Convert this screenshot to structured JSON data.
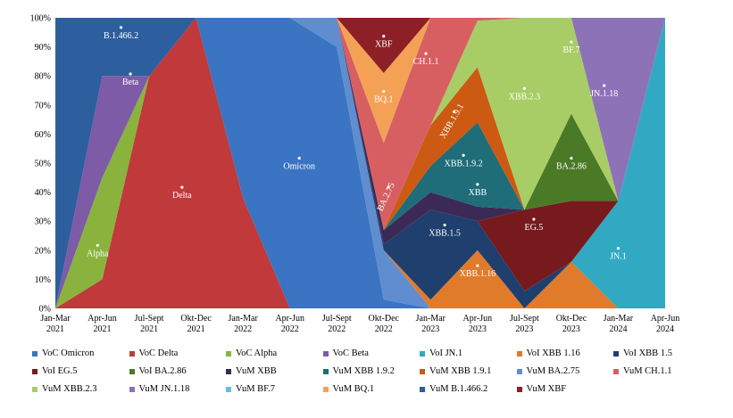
{
  "chart_data": {
    "type": "area",
    "stacking": "percent",
    "title": "",
    "xlabel": "",
    "ylabel": "",
    "ylim": [
      0,
      100
    ],
    "ytick_labels": [
      "0%",
      "10%",
      "20%",
      "30%",
      "40%",
      "50%",
      "60%",
      "70%",
      "80%",
      "90%",
      "100%"
    ],
    "categories": [
      "Jan-Mar\n2021",
      "Apr-Jun\n2021",
      "Jul-Sept\n2021",
      "Okt-Dec\n2021",
      "Jan-Mar\n2022",
      "Apr-Jun\n2022",
      "Jul-Sept\n2022",
      "Okt-Dec\n2022",
      "Jan-Mar\n2023",
      "Apr-Jun\n2023",
      "Jul-Sept\n2023",
      "Okt-Dec\n2023",
      "Jan-Mar\n2024",
      "Apr-Jun\n2024"
    ],
    "xtick_labels": [
      [
        "Jan-Mar",
        "2021"
      ],
      [
        "Apr-Jun",
        "2021"
      ],
      [
        "Jul-Sept",
        "2021"
      ],
      [
        "Okt-Dec",
        "2021"
      ],
      [
        "Jan-Mar",
        "2022"
      ],
      [
        "Apr-Jun",
        "2022"
      ],
      [
        "Jul-Sept",
        "2022"
      ],
      [
        "Okt-Dec",
        "2022"
      ],
      [
        "Jan-Mar",
        "2023"
      ],
      [
        "Apr-Jun",
        "2023"
      ],
      [
        "Jul-Sept",
        "2023"
      ],
      [
        "Okt-Dec",
        "2023"
      ],
      [
        "Jan-Mar",
        "2024"
      ],
      [
        "Apr-Jun",
        "2024"
      ]
    ],
    "series": [
      {
        "name": "VoC Delta",
        "color": "#C0393B",
        "values": [
          0,
          10,
          80,
          100,
          38,
          0,
          0,
          0,
          0,
          0,
          0,
          0,
          0,
          0
        ]
      },
      {
        "name": "VoC Alpha",
        "color": "#8AB33E",
        "values": [
          0,
          35,
          0,
          0,
          0,
          0,
          0,
          0,
          0,
          0,
          0,
          0,
          0,
          0
        ]
      },
      {
        "name": "VoC Beta",
        "color": "#7D5BA6",
        "values": [
          0,
          35,
          0,
          0,
          0,
          0,
          0,
          0,
          0,
          0,
          0,
          0,
          0,
          0
        ]
      },
      {
        "name": "VoC Omicron",
        "color": "#3A74C2",
        "values": [
          0,
          0,
          0,
          0,
          62,
          100,
          90,
          3,
          0,
          0,
          0,
          0,
          0,
          0
        ]
      },
      {
        "name": "VuM BA.2.75",
        "color": "#5F8DCF",
        "values": [
          0,
          0,
          0,
          0,
          0,
          0,
          10,
          17,
          0,
          0,
          0,
          0,
          0,
          0
        ]
      },
      {
        "name": "VoI XBB 1.16",
        "color": "#E07B2C",
        "values": [
          0,
          0,
          0,
          0,
          0,
          0,
          0,
          0,
          3,
          20,
          0,
          16,
          0,
          0
        ]
      },
      {
        "name": "VoI JN.1",
        "color": "#31A9C2",
        "values": [
          0,
          0,
          0,
          0,
          0,
          0,
          0,
          0,
          0,
          0,
          0,
          0,
          37,
          100
        ]
      },
      {
        "name": "VoI XBB 1.5",
        "color": "#1F3F6E",
        "values": [
          0,
          0,
          0,
          0,
          0,
          0,
          0,
          2,
          31,
          10,
          6,
          0,
          0,
          0
        ]
      },
      {
        "name": "VoI EG.5",
        "color": "#771A1E",
        "values": [
          0,
          0,
          0,
          0,
          0,
          0,
          0,
          0,
          0,
          0,
          28,
          21,
          0,
          0
        ]
      },
      {
        "name": "VoI BA.2.86",
        "color": "#4B7A26",
        "values": [
          0,
          0,
          0,
          0,
          0,
          0,
          0,
          0,
          0,
          0,
          0,
          30,
          0,
          0
        ]
      },
      {
        "name": "VuM XBB",
        "color": "#3C2A56",
        "values": [
          0,
          0,
          0,
          0,
          0,
          0,
          0,
          5,
          6,
          5,
          0,
          0,
          0,
          0
        ]
      },
      {
        "name": "VuM XBB 1.9.2",
        "color": "#1E6D78",
        "values": [
          0,
          0,
          0,
          0,
          0,
          0,
          0,
          0,
          9,
          29,
          0,
          0,
          0,
          0
        ]
      },
      {
        "name": "VuM XBB 1.9.1",
        "color": "#CC5A12",
        "values": [
          0,
          0,
          0,
          0,
          0,
          0,
          0,
          0,
          14,
          19,
          0,
          0,
          0,
          0
        ]
      },
      {
        "name": "VuM XBB.2.3",
        "color": "#A8CD66",
        "values": [
          0,
          0,
          0,
          0,
          0,
          0,
          0,
          0,
          0,
          16,
          66,
          33,
          0,
          0
        ]
      },
      {
        "name": "VuM JN.1.18",
        "color": "#8E72B8",
        "values": [
          0,
          0,
          0,
          0,
          0,
          0,
          0,
          0,
          0,
          0,
          0,
          0,
          63,
          0
        ]
      },
      {
        "name": "VuM BF.7",
        "color": "#61C0DA",
        "values": [
          0,
          0,
          0,
          0,
          0,
          0,
          0,
          0,
          0,
          0,
          0,
          0,
          0,
          0
        ]
      },
      {
        "name": "VuM CH.1.1",
        "color": "#D75F62",
        "values": [
          0,
          0,
          0,
          0,
          0,
          0,
          0,
          30,
          37,
          1,
          0,
          0,
          0,
          0
        ]
      },
      {
        "name": "VuM BQ.1",
        "color": "#F4A156",
        "values": [
          0,
          0,
          0,
          0,
          0,
          0,
          0,
          24,
          0,
          0,
          0,
          0,
          0,
          0
        ]
      },
      {
        "name": "VuM B.1.466.2",
        "color": "#2D5F9E",
        "values": [
          100,
          20,
          20,
          0,
          0,
          0,
          0,
          0,
          0,
          0,
          0,
          0,
          0,
          0
        ]
      },
      {
        "name": "VuM XBF",
        "color": "#8C2026",
        "values": [
          0,
          0,
          0,
          0,
          0,
          0,
          0,
          19,
          0,
          0,
          0,
          0,
          0,
          0
        ]
      }
    ],
    "annotations": [
      {
        "text": "B.1.466.2",
        "x": 1.4,
        "y": 93
      },
      {
        "text": "Beta",
        "x": 1.6,
        "y": 77
      },
      {
        "text": "Alpha",
        "x": 0.9,
        "y": 18
      },
      {
        "text": "Delta",
        "x": 2.7,
        "y": 38
      },
      {
        "text": "Omicron",
        "x": 5.2,
        "y": 48
      },
      {
        "text": "XBF",
        "x": 7.0,
        "y": 90
      },
      {
        "text": "BQ.1",
        "x": 7.0,
        "y": 71
      },
      {
        "text": "CH.1.1",
        "x": 7.9,
        "y": 84
      },
      {
        "text": "BA.2.75",
        "x": 7.1,
        "y": 38
      },
      {
        "text": "XBB.1.9.1",
        "x": 8.5,
        "y": 64
      },
      {
        "text": "XBB.1.9.2",
        "x": 8.7,
        "y": 49
      },
      {
        "text": "XBB",
        "x": 9.0,
        "y": 39
      },
      {
        "text": "XBB.1.5",
        "x": 8.3,
        "y": 25
      },
      {
        "text": "XBB.1.16",
        "x": 9.0,
        "y": 11
      },
      {
        "text": "XBB.2.3",
        "x": 10.0,
        "y": 72
      },
      {
        "text": "BF.7",
        "x": 11.0,
        "y": 88
      },
      {
        "text": "JN.1.18",
        "x": 11.7,
        "y": 73
      },
      {
        "text": "BA.2.86",
        "x": 11.0,
        "y": 48
      },
      {
        "text": "EG.5",
        "x": 10.2,
        "y": 27
      },
      {
        "text": "JN.1",
        "x": 12.0,
        "y": 17
      }
    ],
    "legend_position": "bottom",
    "legend": [
      {
        "name": "VoC Omicron",
        "color": "#3A74C2"
      },
      {
        "name": "VoC Delta",
        "color": "#C0393B"
      },
      {
        "name": "VoC Alpha",
        "color": "#8AB33E"
      },
      {
        "name": "VoC Beta",
        "color": "#7D5BA6"
      },
      {
        "name": "VoI JN.1",
        "color": "#31A9C2"
      },
      {
        "name": "VoI XBB 1.16",
        "color": "#E07B2C"
      },
      {
        "name": "VoI XBB 1.5",
        "color": "#1F3F6E"
      },
      {
        "name": "VoI EG.5",
        "color": "#771A1E"
      },
      {
        "name": "VoI BA.2.86",
        "color": "#4B7A26"
      },
      {
        "name": "VuM XBB",
        "color": "#3C2A56"
      },
      {
        "name": "VuM XBB 1.9.2",
        "color": "#1E6D78"
      },
      {
        "name": "VuM XBB 1.9.1",
        "color": "#CC5A12"
      },
      {
        "name": "VuM BA.2.75",
        "color": "#5F8DCF"
      },
      {
        "name": "VuM CH.1.1",
        "color": "#D75F62"
      },
      {
        "name": "VuM XBB.2.3",
        "color": "#A8CD66"
      },
      {
        "name": "VuM JN.1.18",
        "color": "#8E72B8"
      },
      {
        "name": "VuM BF.7",
        "color": "#61C0DA"
      },
      {
        "name": "VuM BQ.1",
        "color": "#F4A156"
      },
      {
        "name": "VuM B.1.466.2",
        "color": "#2D5F9E"
      },
      {
        "name": "VuM XBF",
        "color": "#8C2026"
      }
    ]
  }
}
